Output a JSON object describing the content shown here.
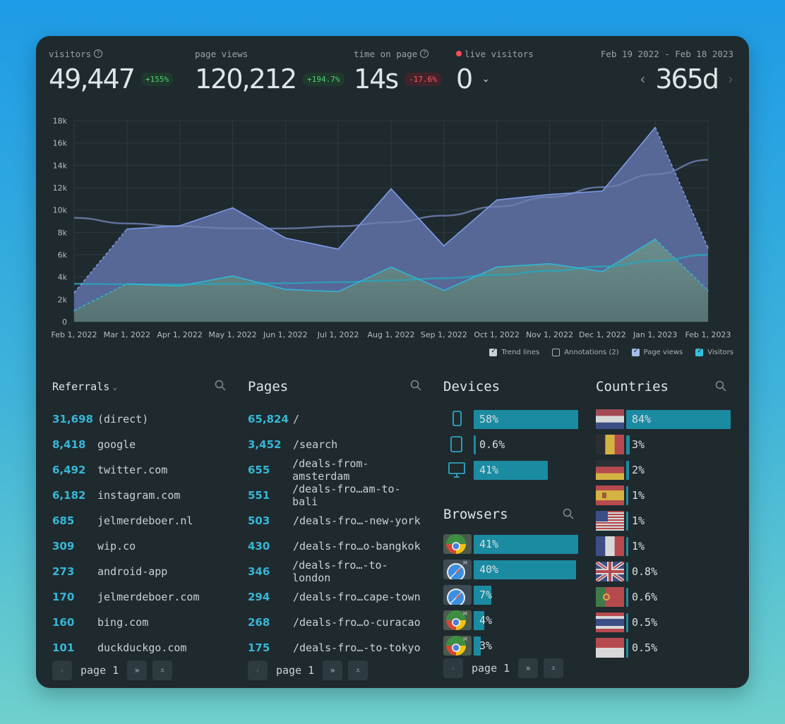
{
  "header": {
    "visitors": {
      "label": "visitors",
      "value": "49,447",
      "change": "+155%"
    },
    "page_views": {
      "label": "page views",
      "value": "120,212",
      "change": "+194.7%"
    },
    "time_on_page": {
      "label": "time on page",
      "value": "14s",
      "change": "-17.6%"
    },
    "live": {
      "label": "live visitors",
      "value": "0"
    },
    "range": {
      "dates": "Feb 19 2022 - Feb 18 2023",
      "period": "365d"
    }
  },
  "chart_data": {
    "type": "area",
    "x": [
      "Feb 1, 2022",
      "Mar 1, 2022",
      "Apr 1, 2022",
      "May 1, 2022",
      "Jun 1, 2022",
      "Jul 1, 2022",
      "Aug 1, 2022",
      "Sep 1, 2022",
      "Oct 1, 2022",
      "Nov 1, 2022",
      "Dec 1, 2022",
      "Jan 1, 2023",
      "Feb 1, 2023"
    ],
    "ylim": [
      0,
      18000
    ],
    "yticks": [
      "0",
      "2k",
      "4k",
      "6k",
      "8k",
      "10k",
      "12k",
      "14k",
      "16k",
      "18k"
    ],
    "series": [
      {
        "name": "Page views",
        "values": [
          2600,
          8300,
          8600,
          10200,
          7500,
          6500,
          11900,
          6800,
          10900,
          11400,
          11700,
          17400,
          6600
        ]
      },
      {
        "name": "Visitors",
        "values": [
          1000,
          3400,
          3200,
          4100,
          2900,
          2700,
          4900,
          2800,
          4900,
          5200,
          4500,
          7400,
          2800
        ]
      }
    ],
    "trend_pv": [
      9300,
      8800,
      8550,
      8350,
      8350,
      8550,
      8900,
      9500,
      10300,
      11150,
      12050,
      13200,
      14500
    ],
    "trend_vis": [
      3400,
      3350,
      3350,
      3400,
      3450,
      3550,
      3700,
      3900,
      4200,
      4550,
      4950,
      5450,
      6000
    ]
  },
  "legend": {
    "trend": "Trend lines",
    "annotations": "Annotations (2)",
    "page_views": "Page views",
    "visitors": "Visitors"
  },
  "referrals": {
    "title": "Referrals",
    "rows": [
      {
        "count": "31,698",
        "label": "(direct)"
      },
      {
        "count": "8,418",
        "label": "google"
      },
      {
        "count": "6,492",
        "label": "twitter.com"
      },
      {
        "count": "6,182",
        "label": "instagram.com"
      },
      {
        "count": "685",
        "label": "jelmerdeboer.nl"
      },
      {
        "count": "309",
        "label": "wip.co"
      },
      {
        "count": "273",
        "label": "android-app"
      },
      {
        "count": "170",
        "label": "jelmerdeboer.com"
      },
      {
        "count": "160",
        "label": "bing.com"
      },
      {
        "count": "101",
        "label": "duckduckgo.com"
      }
    ],
    "page": "page 1"
  },
  "pages": {
    "title": "Pages",
    "rows": [
      {
        "count": "65,824",
        "label": "/"
      },
      {
        "count": "3,452",
        "label": "/search"
      },
      {
        "count": "655",
        "label": "/deals-from-amsterdam"
      },
      {
        "count": "551",
        "label": "/deals-fro…am-to-bali"
      },
      {
        "count": "503",
        "label": "/deals-fro…-new-york"
      },
      {
        "count": "430",
        "label": "/deals-fro…o-bangkok"
      },
      {
        "count": "346",
        "label": "/deals-fro…-to-london"
      },
      {
        "count": "294",
        "label": "/deals-fro…cape-town"
      },
      {
        "count": "268",
        "label": "/deals-fro…o-curacao"
      },
      {
        "count": "175",
        "label": "/deals-fro…-to-tokyo"
      }
    ],
    "page": "page 1"
  },
  "devices": {
    "title": "Devices",
    "rows": [
      {
        "icon": "phone-icon",
        "value": "58%",
        "fraction": 1.0
      },
      {
        "icon": "tablet-icon",
        "value": "0.6%",
        "fraction": 0.0
      },
      {
        "icon": "desktop-icon",
        "value": "41%",
        "fraction": 0.71
      }
    ]
  },
  "browsers": {
    "title": "Browsers",
    "rows": [
      {
        "icon": "chrome-icon",
        "value": "41%",
        "fraction": 1.0
      },
      {
        "icon": "safari-mobile-icon",
        "value": "40%",
        "fraction": 0.98
      },
      {
        "icon": "safari-icon",
        "value": "7%",
        "fraction": 0.17
      },
      {
        "icon": "chrome-mobile-icon",
        "value": "4%",
        "fraction": 0.1
      },
      {
        "icon": "chrome-mobile-icon",
        "value": "3%",
        "fraction": 0.07
      }
    ],
    "badge_m": "M",
    "page": "page 1"
  },
  "countries": {
    "title": "Countries",
    "rows": [
      {
        "flag": "netherlands-flag",
        "value": "84%",
        "fraction": 1.0
      },
      {
        "flag": "belgium-flag",
        "value": "3%",
        "fraction": 0.036
      },
      {
        "flag": "germany-flag",
        "value": "2%",
        "fraction": 0.024
      },
      {
        "flag": "spain-flag",
        "value": "1%",
        "fraction": 0.0
      },
      {
        "flag": "usa-flag",
        "value": "1%",
        "fraction": 0.0
      },
      {
        "flag": "france-flag",
        "value": "1%",
        "fraction": 0.0
      },
      {
        "flag": "uk-flag",
        "value": "0.8%",
        "fraction": 0.0
      },
      {
        "flag": "portugal-flag",
        "value": "0.6%",
        "fraction": 0.0
      },
      {
        "flag": "thailand-flag",
        "value": "0.5%",
        "fraction": 0.0
      },
      {
        "flag": "indonesia-flag",
        "value": "0.5%",
        "fraction": 0.0
      }
    ]
  },
  "colors": {
    "page_views_line": "#7d9be6",
    "page_views_fill": "#5c6b9c",
    "visitors_line": "#2fb6d6",
    "visitors_fill": "#6a8a8c",
    "bar": "#1b8ba2",
    "accent_number": "#35b7d6"
  }
}
